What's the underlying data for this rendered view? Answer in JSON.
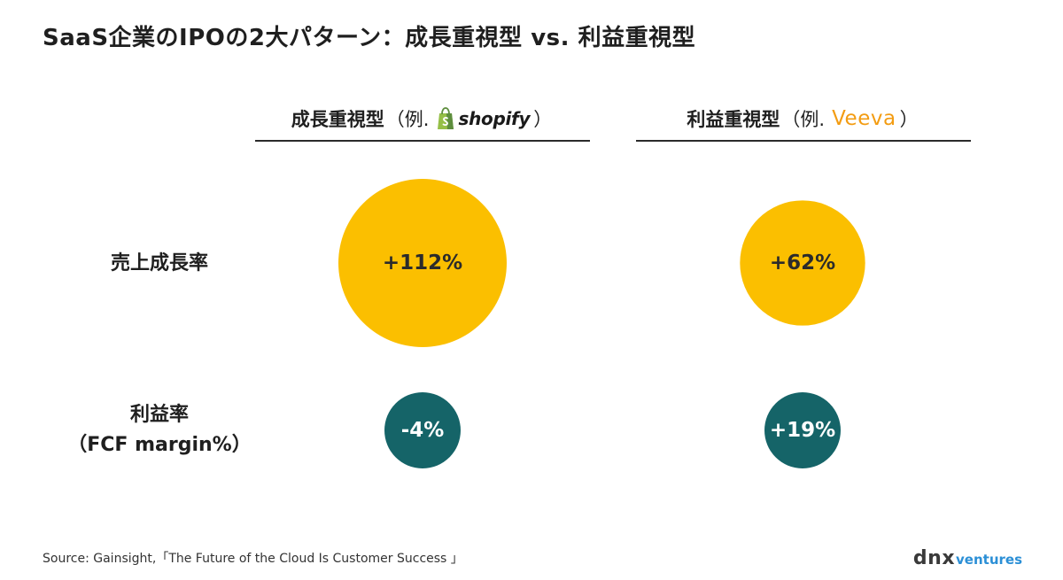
{
  "title": "SaaS企業のIPOの2大パターン：成長重視型 vs. 利益重視型",
  "columns": [
    {
      "label": "成長重視型",
      "paren_open": "（例.",
      "paren_close": "）",
      "logo_icon": "shopify-bag-icon",
      "logo_text": "shopify",
      "accent": "#5e8e3e"
    },
    {
      "label": "利益重視型",
      "paren_open": "（例.",
      "paren_close": "）",
      "logo_icon": "veeva-logo",
      "logo_text": "Veeva",
      "accent": "#f39c12"
    }
  ],
  "rows": [
    {
      "label_line1": "売上成長率",
      "label_line2": ""
    },
    {
      "label_line1": "利益率",
      "label_line2": "（FCF margin%）"
    }
  ],
  "colors": {
    "growth_bubble": "#fbbf00",
    "profit_bubble": "#156468",
    "growth_text": "#2b2b2b",
    "profit_text": "#ffffff"
  },
  "chart_data": {
    "type": "bubble",
    "categories": [
      "成長重視型",
      "利益重視型"
    ],
    "series": [
      {
        "name": "売上成長率",
        "values": [
          112,
          62
        ],
        "labels": [
          "+112%",
          "+62%"
        ]
      },
      {
        "name": "利益率（FCF margin%）",
        "values": [
          -4,
          19
        ],
        "labels": [
          "-4%",
          "+19%"
        ]
      }
    ]
  },
  "source": "Source: Gainsight,「The Future of the Cloud Is Customer Success 」",
  "brand": {
    "part1": "dnx",
    "part2": "ventures"
  }
}
